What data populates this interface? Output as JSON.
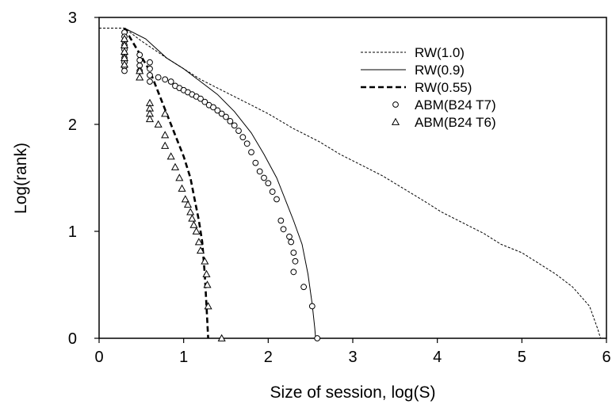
{
  "chart_data": {
    "type": "line",
    "xlabel": "Size of session, log(S)",
    "ylabel": "Log(rank)",
    "xlim": [
      0,
      6
    ],
    "ylim": [
      0,
      3
    ],
    "x_ticks": [
      "0",
      "1",
      "2",
      "3",
      "4",
      "5",
      "6"
    ],
    "y_ticks": [
      "0",
      "1",
      "2",
      "3"
    ],
    "grid": false,
    "legend_position": "top-right",
    "series": [
      {
        "name": "RW(1.0)",
        "style": "dotted-line",
        "points": [
          [
            0.0,
            2.9
          ],
          [
            0.3,
            2.9
          ],
          [
            0.5,
            2.78
          ],
          [
            0.8,
            2.62
          ],
          [
            1.0,
            2.52
          ],
          [
            1.2,
            2.42
          ],
          [
            1.5,
            2.3
          ],
          [
            1.75,
            2.2
          ],
          [
            2.0,
            2.1
          ],
          [
            2.3,
            1.96
          ],
          [
            2.6,
            1.84
          ],
          [
            2.85,
            1.72
          ],
          [
            3.1,
            1.62
          ],
          [
            3.35,
            1.52
          ],
          [
            3.6,
            1.4
          ],
          [
            3.85,
            1.28
          ],
          [
            4.05,
            1.18
          ],
          [
            4.3,
            1.08
          ],
          [
            4.55,
            0.98
          ],
          [
            4.75,
            0.88
          ],
          [
            5.0,
            0.8
          ],
          [
            5.2,
            0.7
          ],
          [
            5.4,
            0.6
          ],
          [
            5.6,
            0.48
          ],
          [
            5.8,
            0.3
          ],
          [
            5.9,
            0.08
          ],
          [
            5.93,
            0.0
          ]
        ]
      },
      {
        "name": "RW(0.9)",
        "style": "solid-line",
        "points": [
          [
            0.3,
            2.9
          ],
          [
            0.55,
            2.8
          ],
          [
            0.8,
            2.62
          ],
          [
            1.0,
            2.52
          ],
          [
            1.2,
            2.4
          ],
          [
            1.4,
            2.28
          ],
          [
            1.6,
            2.12
          ],
          [
            1.8,
            1.92
          ],
          [
            1.95,
            1.72
          ],
          [
            2.1,
            1.5
          ],
          [
            2.2,
            1.3
          ],
          [
            2.3,
            1.1
          ],
          [
            2.4,
            0.88
          ],
          [
            2.47,
            0.6
          ],
          [
            2.52,
            0.32
          ],
          [
            2.55,
            0.1
          ],
          [
            2.56,
            0.0
          ]
        ]
      },
      {
        "name": "RW(0.55)",
        "style": "dashed-line",
        "points": [
          [
            0.3,
            2.9
          ],
          [
            0.45,
            2.7
          ],
          [
            0.6,
            2.5
          ],
          [
            0.7,
            2.3
          ],
          [
            0.8,
            2.1
          ],
          [
            0.9,
            1.9
          ],
          [
            1.0,
            1.7
          ],
          [
            1.08,
            1.5
          ],
          [
            1.13,
            1.3
          ],
          [
            1.18,
            1.1
          ],
          [
            1.22,
            0.9
          ],
          [
            1.25,
            0.6
          ],
          [
            1.27,
            0.3
          ],
          [
            1.29,
            0.0
          ]
        ]
      },
      {
        "name": "ABM(B24 T7)",
        "style": "circle-markers",
        "points": [
          [
            0.3,
            2.86
          ],
          [
            0.3,
            2.82
          ],
          [
            0.3,
            2.78
          ],
          [
            0.3,
            2.74
          ],
          [
            0.3,
            2.7
          ],
          [
            0.3,
            2.66
          ],
          [
            0.3,
            2.62
          ],
          [
            0.3,
            2.58
          ],
          [
            0.3,
            2.54
          ],
          [
            0.3,
            2.5
          ],
          [
            0.48,
            2.65
          ],
          [
            0.48,
            2.6
          ],
          [
            0.48,
            2.55
          ],
          [
            0.48,
            2.5
          ],
          [
            0.6,
            2.58
          ],
          [
            0.6,
            2.52
          ],
          [
            0.6,
            2.46
          ],
          [
            0.6,
            2.4
          ],
          [
            0.7,
            2.44
          ],
          [
            0.78,
            2.42
          ],
          [
            0.85,
            2.4
          ],
          [
            0.9,
            2.36
          ],
          [
            0.95,
            2.34
          ],
          [
            1.0,
            2.32
          ],
          [
            1.05,
            2.3
          ],
          [
            1.1,
            2.28
          ],
          [
            1.15,
            2.26
          ],
          [
            1.2,
            2.24
          ],
          [
            1.25,
            2.21
          ],
          [
            1.3,
            2.18
          ],
          [
            1.35,
            2.16
          ],
          [
            1.4,
            2.13
          ],
          [
            1.45,
            2.1
          ],
          [
            1.5,
            2.07
          ],
          [
            1.55,
            2.03
          ],
          [
            1.6,
            1.99
          ],
          [
            1.65,
            1.94
          ],
          [
            1.7,
            1.88
          ],
          [
            1.75,
            1.82
          ],
          [
            1.8,
            1.74
          ],
          [
            1.85,
            1.64
          ],
          [
            1.9,
            1.56
          ],
          [
            1.95,
            1.5
          ],
          [
            2.0,
            1.45
          ],
          [
            2.05,
            1.37
          ],
          [
            2.1,
            1.3
          ],
          [
            2.15,
            1.1
          ],
          [
            2.18,
            1.02
          ],
          [
            2.25,
            0.95
          ],
          [
            2.27,
            0.9
          ],
          [
            2.3,
            0.8
          ],
          [
            2.32,
            0.72
          ],
          [
            2.3,
            0.62
          ],
          [
            2.42,
            0.48
          ],
          [
            2.52,
            0.3
          ],
          [
            2.58,
            0.0
          ]
        ]
      },
      {
        "name": "ABM(B24 T6)",
        "style": "triangle-markers",
        "points": [
          [
            0.3,
            2.8
          ],
          [
            0.3,
            2.74
          ],
          [
            0.3,
            2.68
          ],
          [
            0.3,
            2.62
          ],
          [
            0.3,
            2.56
          ],
          [
            0.48,
            2.5
          ],
          [
            0.48,
            2.44
          ],
          [
            0.6,
            2.2
          ],
          [
            0.6,
            2.15
          ],
          [
            0.6,
            2.1
          ],
          [
            0.6,
            2.05
          ],
          [
            0.7,
            2.0
          ],
          [
            0.78,
            2.1
          ],
          [
            0.78,
            1.9
          ],
          [
            0.78,
            1.8
          ],
          [
            0.85,
            1.7
          ],
          [
            0.9,
            1.6
          ],
          [
            0.95,
            1.5
          ],
          [
            0.98,
            1.4
          ],
          [
            1.02,
            1.3
          ],
          [
            1.05,
            1.25
          ],
          [
            1.08,
            1.18
          ],
          [
            1.1,
            1.12
          ],
          [
            1.12,
            1.06
          ],
          [
            1.15,
            1.0
          ],
          [
            1.18,
            0.9
          ],
          [
            1.2,
            0.82
          ],
          [
            1.25,
            0.72
          ],
          [
            1.27,
            0.6
          ],
          [
            1.28,
            0.5
          ],
          [
            1.29,
            0.3
          ],
          [
            1.45,
            0.0
          ]
        ]
      }
    ]
  }
}
